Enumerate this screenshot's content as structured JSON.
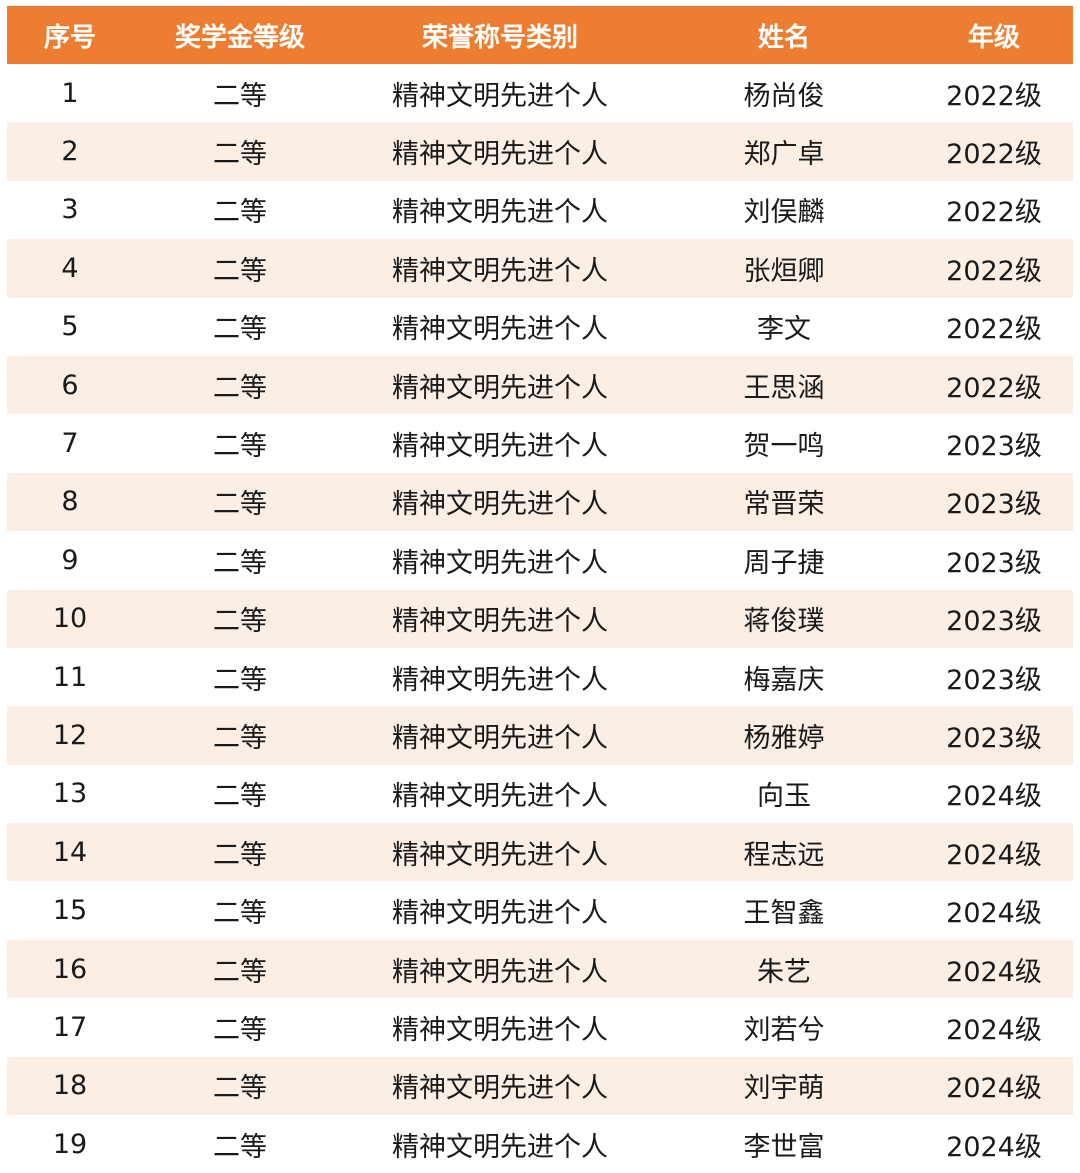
{
  "colors": {
    "header_bg": "#ED7D31",
    "header_text": "#FFFFFF",
    "alt_row_bg": "#FBEEE5"
  },
  "headers": [
    "序号",
    "奖学金等级",
    "荣誉称号类别",
    "姓名",
    "年级"
  ],
  "rows": [
    [
      "1",
      "二等",
      "精神文明先进个人",
      "杨尚俊",
      "2022级"
    ],
    [
      "2",
      "二等",
      "精神文明先进个人",
      "郑广卓",
      "2022级"
    ],
    [
      "3",
      "二等",
      "精神文明先进个人",
      "刘俣麟",
      "2022级"
    ],
    [
      "4",
      "二等",
      "精神文明先进个人",
      "张烜卿",
      "2022级"
    ],
    [
      "5",
      "二等",
      "精神文明先进个人",
      "李文",
      "2022级"
    ],
    [
      "6",
      "二等",
      "精神文明先进个人",
      "王思涵",
      "2022级"
    ],
    [
      "7",
      "二等",
      "精神文明先进个人",
      "贺一鸣",
      "2023级"
    ],
    [
      "8",
      "二等",
      "精神文明先进个人",
      "常晋荣",
      "2023级"
    ],
    [
      "9",
      "二等",
      "精神文明先进个人",
      "周子捷",
      "2023级"
    ],
    [
      "10",
      "二等",
      "精神文明先进个人",
      "蒋俊璞",
      "2023级"
    ],
    [
      "11",
      "二等",
      "精神文明先进个人",
      "梅嘉庆",
      "2023级"
    ],
    [
      "12",
      "二等",
      "精神文明先进个人",
      "杨雅婷",
      "2023级"
    ],
    [
      "13",
      "二等",
      "精神文明先进个人",
      "向玉",
      "2024级"
    ],
    [
      "14",
      "二等",
      "精神文明先进个人",
      "程志远",
      "2024级"
    ],
    [
      "15",
      "二等",
      "精神文明先进个人",
      "王智鑫",
      "2024级"
    ],
    [
      "16",
      "二等",
      "精神文明先进个人",
      "朱艺",
      "2024级"
    ],
    [
      "17",
      "二等",
      "精神文明先进个人",
      "刘若兮",
      "2024级"
    ],
    [
      "18",
      "二等",
      "精神文明先进个人",
      "刘宇萌",
      "2024级"
    ],
    [
      "19",
      "二等",
      "精神文明先进个人",
      "李世富",
      "2024级"
    ]
  ]
}
